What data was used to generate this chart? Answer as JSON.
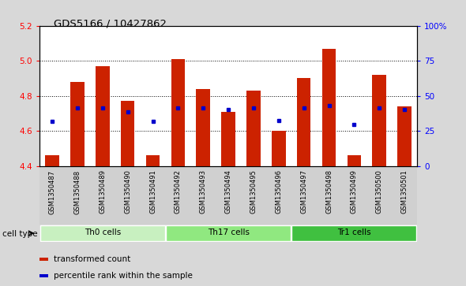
{
  "title": "GDS5166 / 10427862",
  "samples": [
    "GSM1350487",
    "GSM1350488",
    "GSM1350489",
    "GSM1350490",
    "GSM1350491",
    "GSM1350492",
    "GSM1350493",
    "GSM1350494",
    "GSM1350495",
    "GSM1350496",
    "GSM1350497",
    "GSM1350498",
    "GSM1350499",
    "GSM1350500",
    "GSM1350501"
  ],
  "bar_values": [
    4.46,
    4.88,
    4.97,
    4.77,
    4.46,
    5.01,
    4.84,
    4.71,
    4.83,
    4.6,
    4.9,
    5.07,
    4.46,
    4.92,
    4.74
  ],
  "blue_dot_values": [
    4.655,
    4.73,
    4.73,
    4.71,
    4.655,
    4.73,
    4.73,
    4.72,
    4.73,
    4.66,
    4.73,
    4.745,
    4.635,
    4.73,
    4.72
  ],
  "ymin": 4.4,
  "ymax": 5.2,
  "yticks": [
    4.4,
    4.6,
    4.8,
    5.0,
    5.2
  ],
  "right_yticks": [
    0,
    25,
    50,
    75,
    100
  ],
  "right_ytick_labels": [
    "0",
    "25",
    "50",
    "75",
    "100%"
  ],
  "cell_groups": [
    {
      "label": "Th0 cells",
      "start": 0,
      "end": 5,
      "color": "#c8f0c0"
    },
    {
      "label": "Th17 cells",
      "start": 5,
      "end": 10,
      "color": "#90e880"
    },
    {
      "label": "Tr1 cells",
      "start": 10,
      "end": 15,
      "color": "#40c040"
    }
  ],
  "bar_color": "#cc2200",
  "dot_color": "#0000cc",
  "bar_bottom": 4.4,
  "fig_bg": "#d8d8d8",
  "plot_bg": "#ffffff",
  "xtick_bg": "#d0d0d0",
  "legend_items": [
    {
      "color": "#cc2200",
      "label": "transformed count"
    },
    {
      "color": "#0000cc",
      "label": "percentile rank within the sample"
    }
  ]
}
